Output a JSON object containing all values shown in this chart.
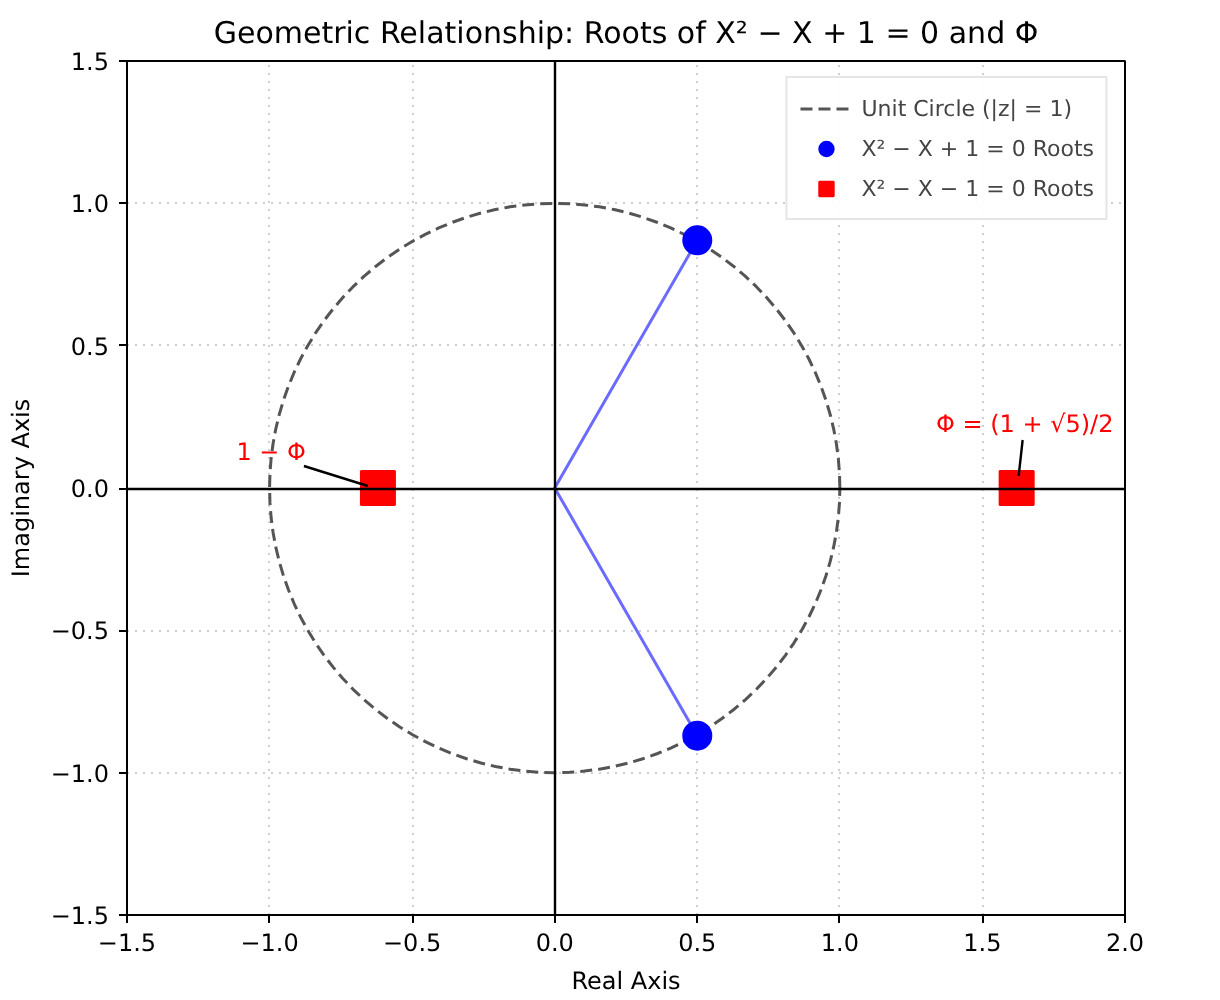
{
  "chart_data": {
    "type": "scatter",
    "title": "Geometric Relationship: Roots of X² − X + 1 = 0 and Φ",
    "xlabel": "Real Axis",
    "ylabel": "Imaginary Axis",
    "xlim": [
      -1.5,
      2.0
    ],
    "ylim": [
      -1.5,
      1.5
    ],
    "xticks": [
      {
        "value": -1.5,
        "label": "−1.5"
      },
      {
        "value": -1.0,
        "label": "−1.0"
      },
      {
        "value": -0.5,
        "label": "−0.5"
      },
      {
        "value": 0,
        "label": "0.0"
      },
      {
        "value": 0.5,
        "label": "0.5"
      },
      {
        "value": 1.0,
        "label": "1.0"
      },
      {
        "value": 1.5,
        "label": "1.5"
      },
      {
        "value": 2.0,
        "label": "2.0"
      }
    ],
    "yticks": [
      {
        "value": -1.5,
        "label": "−1.5"
      },
      {
        "value": -1.0,
        "label": "−1.0"
      },
      {
        "value": -0.5,
        "label": "−0.5"
      },
      {
        "value": 0,
        "label": "0.0"
      },
      {
        "value": 0.5,
        "label": "0.5"
      },
      {
        "value": 1.0,
        "label": "1.0"
      },
      {
        "value": 1.5,
        "label": "1.5"
      }
    ],
    "grid": true,
    "legend": "top right",
    "series": [
      {
        "type": "line",
        "color": "#6b6bff",
        "x": [
          0.5,
          0,
          0.5
        ],
        "values": [
          0.87,
          0,
          -0.87
        ]
      },
      {
        "type": "scatter",
        "name": "X² − X + 1 = 0 Roots",
        "color": "#0000ff",
        "marker": "circle",
        "x": [
          0.5,
          0.5
        ],
        "values": [
          0.87,
          -0.87
        ]
      },
      {
        "type": "scatter",
        "name": "X² − X − 1 = 0 Roots",
        "color": "#ff0000",
        "marker": "square",
        "x": [
          -0.62,
          1.62
        ],
        "values": [
          0,
          0
        ]
      }
    ],
    "annotations": [
      "Unit Circle (|z| = 1)",
      {
        "text": "1 − Φ",
        "x": -0.62,
        "y": 0
      },
      {
        "text": "Φ = (1 + √5)/2",
        "x": 1.62,
        "y": 0
      }
    ]
  }
}
